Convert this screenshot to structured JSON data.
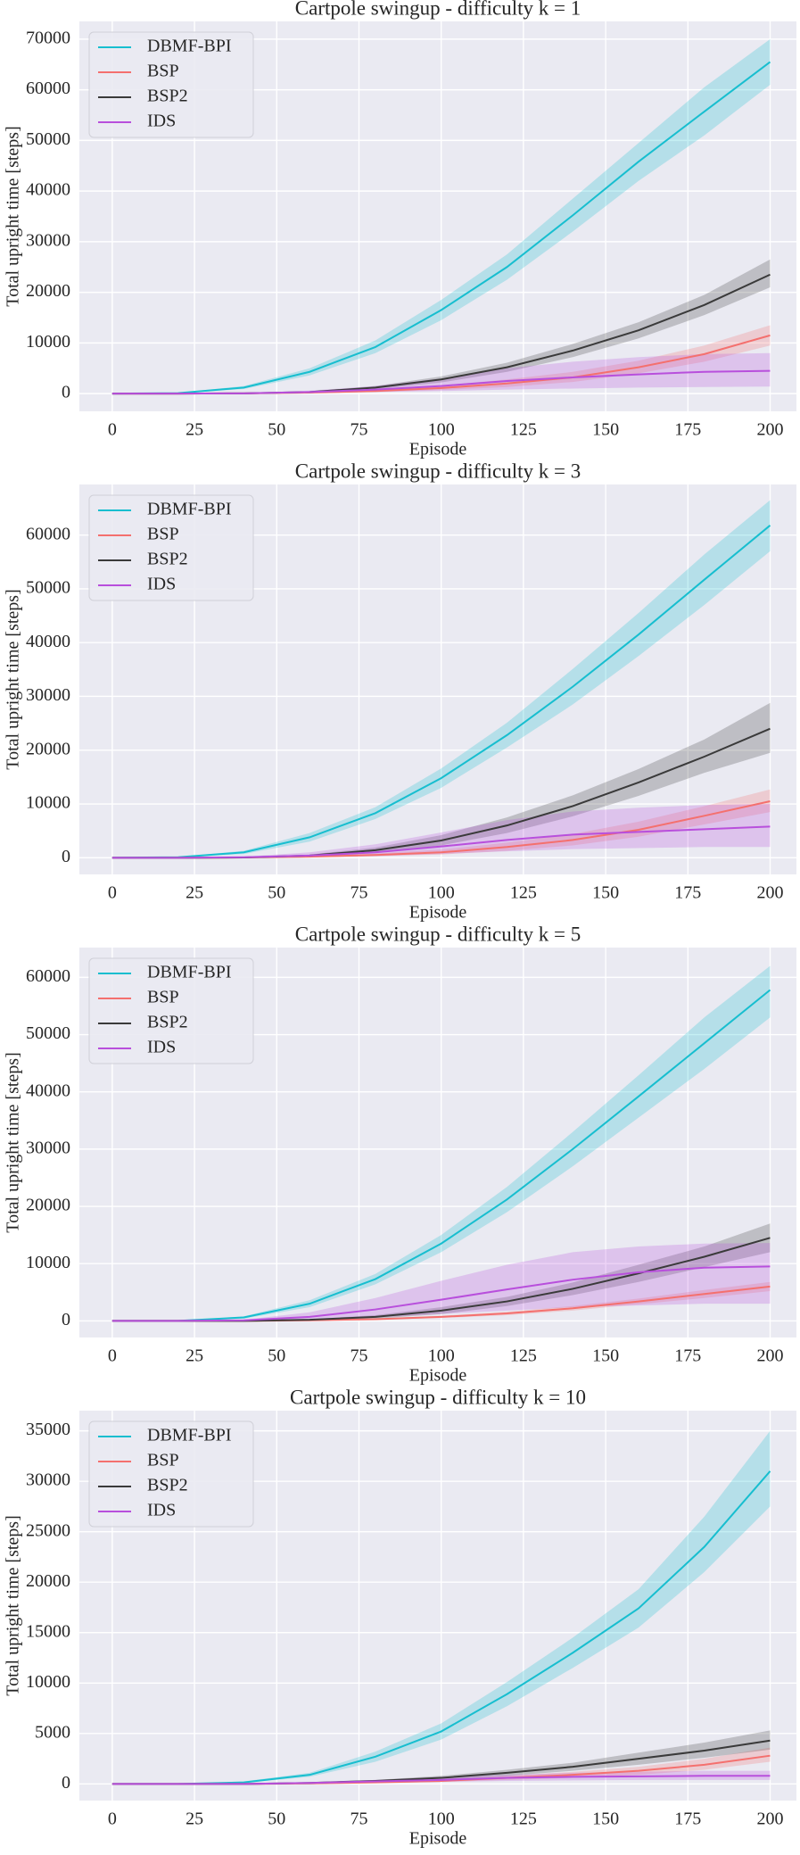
{
  "chart_data": [
    {
      "type": "line",
      "title": "Cartpole swingup - difficulty k = 1",
      "x_label": "Episode",
      "y_label": "Total upright time [steps]",
      "x": [
        0,
        20,
        40,
        60,
        80,
        100,
        120,
        140,
        160,
        180,
        200
      ],
      "xlim": [
        -10,
        208
      ],
      "xticks": [
        0,
        25,
        50,
        75,
        100,
        125,
        150,
        175,
        200
      ],
      "ylim": [
        -3500,
        73500
      ],
      "yticks": [
        0,
        10000,
        20000,
        30000,
        40000,
        50000,
        60000,
        70000
      ],
      "grid": true,
      "legend": "upper left",
      "series": [
        {
          "name": "DBMF-BPI",
          "color": "#17becf",
          "values": [
            0,
            100,
            1200,
            4300,
            9200,
            16500,
            25000,
            35200,
            45800,
            55700,
            65500
          ],
          "lower": [
            0,
            50,
            900,
            3600,
            8000,
            14500,
            22500,
            32000,
            42000,
            51000,
            61000
          ],
          "upper": [
            0,
            150,
            1500,
            5000,
            10500,
            18500,
            27500,
            38500,
            49500,
            60500,
            70000
          ]
        },
        {
          "name": "BSP",
          "color": "#f4706e",
          "values": [
            0,
            0,
            50,
            200,
            500,
            1100,
            2000,
            3200,
            5200,
            7800,
            11500
          ],
          "lower": [
            0,
            0,
            0,
            100,
            300,
            700,
            1300,
            2300,
            4000,
            6300,
            9500
          ],
          "upper": [
            0,
            0,
            100,
            300,
            800,
            1600,
            2800,
            4300,
            6500,
            9500,
            13500
          ]
        },
        {
          "name": "BSP2",
          "color": "#3a3a3a",
          "values": [
            0,
            0,
            50,
            300,
            1200,
            2800,
            5200,
            8500,
            12500,
            17500,
            23500
          ],
          "lower": [
            0,
            0,
            0,
            200,
            900,
            2200,
            4300,
            7200,
            10900,
            15500,
            21000
          ],
          "upper": [
            0,
            0,
            100,
            400,
            1500,
            3400,
            6100,
            9800,
            14100,
            19500,
            26500
          ]
        },
        {
          "name": "IDS",
          "color": "#b84fdc",
          "values": [
            0,
            0,
            50,
            300,
            800,
            1500,
            2500,
            3200,
            3800,
            4300,
            4500
          ],
          "lower": [
            0,
            0,
            0,
            100,
            300,
            500,
            800,
            1000,
            1200,
            1300,
            1400
          ],
          "upper": [
            0,
            0,
            100,
            600,
            1500,
            3000,
            5000,
            6300,
            7200,
            7800,
            8000
          ]
        }
      ]
    },
    {
      "type": "line",
      "title": "Cartpole swingup - difficulty k = 3",
      "x_label": "Episode",
      "y_label": "Total upright time [steps]",
      "x": [
        0,
        20,
        40,
        60,
        80,
        100,
        120,
        140,
        160,
        180,
        200
      ],
      "xlim": [
        -10,
        208
      ],
      "xticks": [
        0,
        25,
        50,
        75,
        100,
        125,
        150,
        175,
        200
      ],
      "ylim": [
        -3100,
        69400
      ],
      "yticks": [
        0,
        10000,
        20000,
        30000,
        40000,
        50000,
        60000
      ],
      "grid": true,
      "legend": "upper left",
      "series": [
        {
          "name": "DBMF-BPI",
          "color": "#17becf",
          "values": [
            0,
            100,
            1000,
            3800,
            8300,
            14800,
            22800,
            31800,
            41500,
            51700,
            61800
          ],
          "lower": [
            0,
            50,
            700,
            3000,
            7200,
            13000,
            20500,
            28500,
            37500,
            47000,
            57000
          ],
          "upper": [
            0,
            150,
            1300,
            4600,
            9400,
            16600,
            25100,
            35100,
            45500,
            56400,
            66500
          ]
        },
        {
          "name": "BSP",
          "color": "#f4706e",
          "values": [
            0,
            0,
            50,
            200,
            500,
            1000,
            2000,
            3300,
            5200,
            7800,
            10500
          ],
          "lower": [
            0,
            0,
            0,
            100,
            300,
            600,
            1300,
            2300,
            3900,
            6200,
            8500
          ],
          "upper": [
            0,
            0,
            100,
            300,
            800,
            1500,
            2800,
            4400,
            6700,
            9600,
            12700
          ]
        },
        {
          "name": "BSP2",
          "color": "#3a3a3a",
          "values": [
            0,
            0,
            50,
            400,
            1400,
            3200,
            6000,
            9600,
            14000,
            18800,
            24000
          ],
          "lower": [
            0,
            0,
            0,
            200,
            900,
            2300,
            4600,
            7700,
            11500,
            15800,
            19500
          ],
          "upper": [
            0,
            0,
            100,
            600,
            1900,
            4200,
            7500,
            11600,
            16500,
            22000,
            28800
          ]
        },
        {
          "name": "IDS",
          "color": "#b84fdc",
          "values": [
            0,
            0,
            100,
            400,
            1000,
            2100,
            3300,
            4300,
            4800,
            5300,
            5800
          ],
          "lower": [
            0,
            0,
            0,
            100,
            300,
            700,
            1200,
            1600,
            1800,
            2000,
            2000
          ],
          "upper": [
            0,
            0,
            200,
            1000,
            2500,
            4700,
            7000,
            8600,
            9300,
            9800,
            10000
          ]
        }
      ]
    },
    {
      "type": "line",
      "title": "Cartpole swingup - difficulty k = 5",
      "x_label": "Episode",
      "y_label": "Total upright time [steps]",
      "x": [
        0,
        20,
        40,
        60,
        80,
        100,
        120,
        140,
        160,
        180,
        200
      ],
      "xlim": [
        -10,
        208
      ],
      "xticks": [
        0,
        25,
        50,
        75,
        100,
        125,
        150,
        175,
        200
      ],
      "ylim": [
        -2900,
        65200
      ],
      "yticks": [
        0,
        10000,
        20000,
        30000,
        40000,
        50000,
        60000
      ],
      "grid": true,
      "legend": "upper left",
      "series": [
        {
          "name": "DBMF-BPI",
          "color": "#17becf",
          "values": [
            0,
            0,
            600,
            3000,
            7300,
            13500,
            21200,
            30000,
            39200,
            48500,
            57800
          ],
          "lower": [
            0,
            0,
            400,
            2400,
            6400,
            12000,
            19000,
            27000,
            35500,
            44000,
            53000
          ],
          "upper": [
            0,
            0,
            800,
            3600,
            8200,
            15000,
            23400,
            33000,
            42900,
            53000,
            62000
          ]
        },
        {
          "name": "BSP",
          "color": "#f4706e",
          "values": [
            0,
            0,
            0,
            100,
            300,
            700,
            1300,
            2200,
            3400,
            4700,
            6000
          ],
          "lower": [
            0,
            0,
            0,
            50,
            200,
            500,
            1000,
            1800,
            2900,
            4000,
            5200
          ],
          "upper": [
            0,
            0,
            50,
            200,
            400,
            900,
            1600,
            2600,
            3900,
            5400,
            6800
          ]
        },
        {
          "name": "BSP2",
          "color": "#3a3a3a",
          "values": [
            0,
            0,
            0,
            200,
            700,
            1800,
            3400,
            5600,
            8300,
            11200,
            14500
          ],
          "lower": [
            0,
            0,
            0,
            100,
            400,
            1200,
            2600,
            4500,
            6800,
            9400,
            12000
          ],
          "upper": [
            0,
            0,
            50,
            300,
            1000,
            2400,
            4200,
            6700,
            9800,
            13000,
            17000
          ]
        },
        {
          "name": "IDS",
          "color": "#b84fdc",
          "values": [
            0,
            0,
            100,
            700,
            2000,
            3700,
            5500,
            7200,
            8500,
            9300,
            9500
          ],
          "lower": [
            0,
            0,
            0,
            200,
            600,
            1200,
            1800,
            2400,
            2700,
            3000,
            3000
          ],
          "upper": [
            0,
            0,
            200,
            1500,
            4000,
            7000,
            9800,
            12000,
            13000,
            13500,
            13600
          ]
        }
      ]
    },
    {
      "type": "line",
      "title": "Cartpole swingup - difficulty k = 10",
      "x_label": "Episode",
      "y_label": "Total upright time [steps]",
      "x": [
        0,
        20,
        40,
        60,
        80,
        100,
        120,
        140,
        160,
        180,
        200
      ],
      "xlim": [
        -10,
        208
      ],
      "xticks": [
        0,
        25,
        50,
        75,
        100,
        125,
        150,
        175,
        200
      ],
      "ylim": [
        -1650,
        37000
      ],
      "yticks": [
        0,
        5000,
        10000,
        15000,
        20000,
        25000,
        30000,
        35000
      ],
      "grid": true,
      "legend": "upper left",
      "series": [
        {
          "name": "DBMF-BPI",
          "color": "#17becf",
          "values": [
            0,
            0,
            150,
            900,
            2700,
            5200,
            8900,
            13000,
            17400,
            23500,
            31000
          ],
          "lower": [
            0,
            0,
            100,
            700,
            2200,
            4400,
            7700,
            11500,
            15500,
            21000,
            27500
          ],
          "upper": [
            0,
            0,
            250,
            1100,
            3200,
            6000,
            10100,
            14500,
            19300,
            26500,
            35000
          ]
        },
        {
          "name": "BSP",
          "color": "#f4706e",
          "values": [
            0,
            0,
            0,
            50,
            150,
            300,
            600,
            900,
            1300,
            1900,
            2800
          ],
          "lower": [
            0,
            0,
            0,
            20,
            100,
            200,
            400,
            600,
            900,
            1400,
            2200
          ],
          "upper": [
            0,
            0,
            0,
            80,
            200,
            400,
            800,
            1200,
            1700,
            2500,
            3600
          ]
        },
        {
          "name": "BSP2",
          "color": "#3a3a3a",
          "values": [
            0,
            0,
            0,
            100,
            300,
            600,
            1100,
            1700,
            2500,
            3300,
            4300
          ],
          "lower": [
            0,
            0,
            0,
            50,
            200,
            400,
            800,
            1300,
            1900,
            2600,
            3400
          ],
          "upper": [
            0,
            0,
            0,
            150,
            400,
            800,
            1400,
            2100,
            3100,
            4100,
            5300
          ]
        },
        {
          "name": "IDS",
          "color": "#b84fdc",
          "values": [
            0,
            0,
            0,
            100,
            250,
            400,
            600,
            700,
            750,
            800,
            800
          ],
          "lower": [
            0,
            0,
            0,
            50,
            100,
            200,
            300,
            350,
            400,
            400,
            400
          ],
          "upper": [
            0,
            0,
            0,
            150,
            400,
            700,
            900,
            1100,
            1200,
            1300,
            1300
          ]
        }
      ]
    }
  ]
}
